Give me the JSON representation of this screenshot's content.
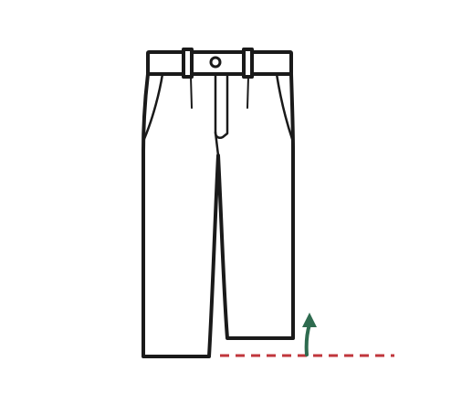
{
  "illustration": {
    "subject": "trousers-line-drawing",
    "colors": {
      "background": "#ffffff",
      "outline": "#1a1a1a",
      "hem_guide": "#c0363c",
      "arrow": "#2e6b4f"
    },
    "icons": {
      "garment": "trousers-icon",
      "indicator": "arrow-up-icon",
      "guide": "dashed-line"
    }
  }
}
